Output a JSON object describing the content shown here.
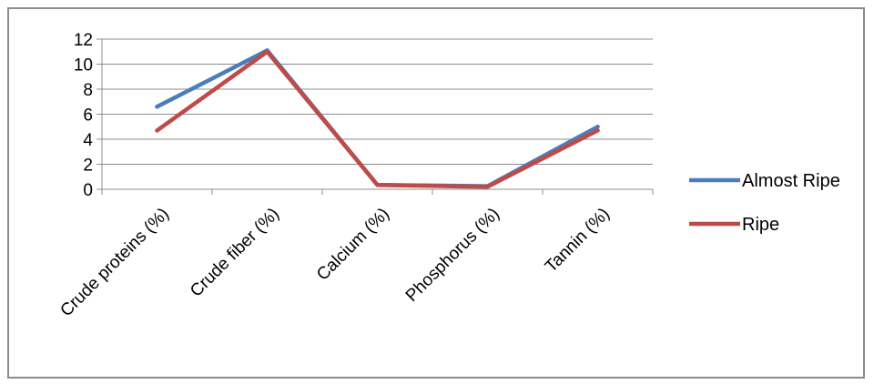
{
  "chart_data": {
    "type": "line",
    "title": "",
    "xlabel": "",
    "ylabel": "",
    "categories": [
      "Crude proteins (%)",
      "Crude fiber (%)",
      "Calcium (%)",
      "Phosphorus (%)",
      "Tannin (%)"
    ],
    "series": [
      {
        "name": "Almost Ripe",
        "color": "#4a7ebb",
        "values": [
          6.6,
          11.1,
          0.35,
          0.25,
          5.0
        ]
      },
      {
        "name": "Ripe",
        "color": "#be4b48",
        "values": [
          4.7,
          11.0,
          0.35,
          0.2,
          4.7
        ]
      }
    ],
    "ylim": [
      0,
      12
    ],
    "yticks": [
      0,
      2,
      4,
      6,
      8,
      10,
      12
    ],
    "grid": true,
    "legend_position": "right"
  }
}
